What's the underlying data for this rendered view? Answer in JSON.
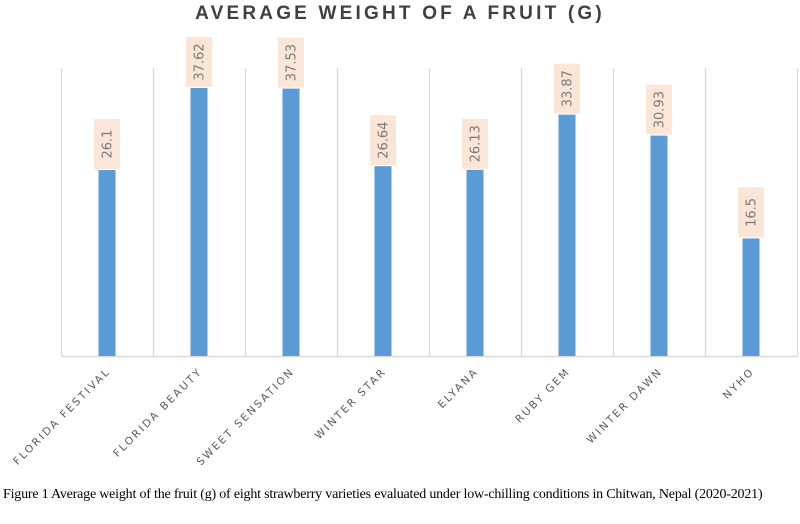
{
  "chart_data": {
    "type": "bar",
    "title": "AVERAGE WEIGHT OF A FRUIT (G)",
    "categories": [
      "FLORIDA FESTIVAL",
      "FLORIDA BEAUTY",
      "SWEET SENSATION",
      "WINTER STAR",
      "ELYANA",
      "RUBY GEM",
      "WINTER DAWN",
      "NYHO"
    ],
    "values": [
      26.1,
      37.62,
      37.53,
      26.64,
      26.13,
      33.87,
      30.93,
      16.5
    ],
    "data_labels": [
      "26.1",
      "37.62",
      "37.53",
      "26.64",
      "26.13",
      "33.87",
      "30.93",
      "16.5"
    ],
    "xlabel": "",
    "ylabel": "",
    "ylim": [
      0,
      40
    ],
    "grid": "vertical category separators",
    "legend": "none",
    "colors": {
      "bar": "#5b9bd5",
      "label_bg": "#fbe5d6",
      "grid": "#d9d9d9"
    }
  },
  "caption": "Figure 1 Average weight of the fruit (g) of eight strawberry varieties evaluated under low-chilling conditions in Chitwan, Nepal (2020-2021)"
}
